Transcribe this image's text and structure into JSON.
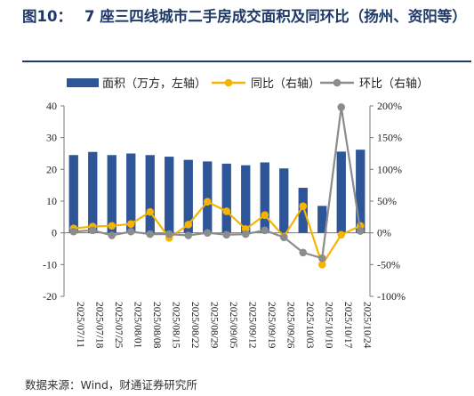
{
  "header": {
    "figure_label": "图10：",
    "title": "7 座三四线城市二手房成交面积及同环比（扬州、资阳等）"
  },
  "footer": {
    "source": "数据来源：Wind，财通证券研究所"
  },
  "chart_data": {
    "type": "bar+line",
    "categories": [
      "2025/07/11",
      "2025/07/18",
      "2025/07/25",
      "2025/08/01",
      "2025/08/08",
      "2025/08/15",
      "2025/08/22",
      "2025/08/29",
      "2025/09/05",
      "2025/09/12",
      "2025/09/19",
      "2025/09/26",
      "2025/10/03",
      "2025/10/10",
      "2025/10/17",
      "2025/10/24"
    ],
    "series": [
      {
        "name": "面积（万方，左轴）",
        "axis": "left",
        "kind": "bar",
        "color": "#2e5598",
        "values": [
          24.5,
          25.5,
          24.5,
          25,
          24.5,
          24,
          23,
          22.5,
          21.8,
          21.3,
          22.2,
          20.3,
          14.2,
          8.5,
          25.6,
          26.2
        ]
      },
      {
        "name": "同比（右轴）",
        "axis": "right",
        "kind": "line",
        "color": "#f4b400",
        "values": [
          7,
          10,
          11,
          14,
          33,
          -8,
          13,
          49,
          34,
          6,
          28,
          -6,
          42,
          -50,
          -3,
          11
        ]
      },
      {
        "name": "环比（右轴）",
        "axis": "right",
        "kind": "line",
        "color": "#8c8c8c",
        "values": [
          2,
          4,
          -4,
          2,
          -2,
          -2,
          -4,
          0,
          -3,
          -2,
          4,
          -7,
          -31,
          -40,
          198,
          3
        ]
      }
    ],
    "y_left": {
      "min": -20,
      "max": 40,
      "ticks": [
        "-20",
        "-10",
        "0",
        "10",
        "20",
        "30",
        "40"
      ]
    },
    "y_right": {
      "min": -100,
      "max": 200,
      "ticks": [
        "-100%",
        "-50%",
        "0%",
        "50%",
        "100%",
        "150%",
        "200%"
      ]
    },
    "legend_position": "top",
    "grid": false
  }
}
